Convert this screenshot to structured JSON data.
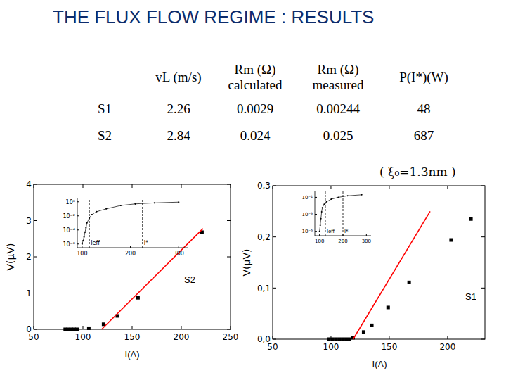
{
  "title": "THE FLUX FLOW REGIME : RESULTS",
  "table": {
    "header": [
      "vL (m/s)",
      "Rm (Ω) calculated",
      "Rm (Ω) measured",
      "P(I*)(W)"
    ],
    "rows": [
      [
        "S1",
        2.26,
        0.0029,
        0.00244,
        48
      ],
      [
        "S2",
        2.84,
        0.024,
        0.025,
        687
      ]
    ]
  },
  "note": "( ξ₀=1.3nm )",
  "chart_data": [
    {
      "type": "scatter",
      "x_label": "I(A)",
      "y_label": "V(μV)",
      "xlim": [
        50,
        250
      ],
      "ylim": [
        0,
        4
      ],
      "xticks": [
        50,
        100,
        150,
        200,
        250
      ],
      "yticks": [
        0,
        1,
        2,
        3,
        4
      ],
      "series": [
        {
          "type": "scatter",
          "marker": "square",
          "color": "#000000",
          "x": [
            82,
            85,
            88,
            91,
            94,
            106,
            121,
            135,
            156,
            221
          ],
          "values": [
            0,
            0,
            0,
            0,
            0,
            0.03,
            0.14,
            0.37,
            0.87,
            2.68
          ]
        },
        {
          "name": "S2",
          "type": "line",
          "color": "#ff0000",
          "x": [
            119,
            222
          ],
          "values": [
            0,
            2.78
          ]
        }
      ]
    },
    {
      "type": "line",
      "log": "y",
      "xlim": [
        90,
        320
      ],
      "ylim": [
        3e-07,
        3
      ],
      "xticks": [
        100,
        200,
        300
      ],
      "yticks": [
        {
          "value": 1,
          "label": "10⁰"
        },
        {
          "value": 0.01,
          "label": "10⁻²"
        },
        {
          "value": 0.0001,
          "label": "10⁻⁴"
        },
        {
          "value": 1e-06,
          "label": "10⁻⁶"
        }
      ],
      "series": [
        {
          "type": "line",
          "marker": "circle",
          "color": "#000000",
          "x": [
            100,
            102,
            104,
            106,
            108,
            110,
            115,
            120,
            130,
            150,
            180,
            210,
            250,
            300
          ],
          "values": [
            1e-06,
            3e-06,
            1e-05,
            5e-05,
            0.0002,
            0.001,
            0.005,
            0.015,
            0.04,
            0.1,
            0.3,
            0.5,
            0.7,
            0.9
          ]
        }
      ],
      "vlines": [
        {
          "x": 115,
          "label": "Ieff"
        },
        {
          "x": 225,
          "label": "I*"
        }
      ]
    },
    {
      "type": "scatter",
      "x_label": "I(A)",
      "y_label": "V(μV)",
      "xlim": [
        50,
        232
      ],
      "ylim": [
        0,
        0.3
      ],
      "xticks": [
        50,
        100,
        150,
        200
      ],
      "yticks": [
        {
          "value": 0,
          "label": "0,0"
        },
        {
          "value": 0.1,
          "label": "0,1"
        },
        {
          "value": 0.2,
          "label": "0,2"
        },
        {
          "value": 0.3,
          "label": "0,3"
        }
      ],
      "series": [
        {
          "type": "scatter",
          "marker": "square",
          "color": "#000000",
          "x": [
            98,
            101,
            104,
            107,
            110,
            113,
            116,
            119,
            128,
            135,
            149,
            167,
            203,
            220
          ],
          "values": [
            0,
            0,
            0,
            0,
            0,
            0,
            0,
            0.003,
            0.014,
            0.027,
            0.062,
            0.111,
            0.194,
            0.235
          ]
        },
        {
          "name": "S1",
          "type": "line",
          "color": "#ff0000",
          "x": [
            119,
            185
          ],
          "values": [
            0,
            0.25
          ]
        }
      ]
    },
    {
      "type": "line",
      "log": "y",
      "xlim": [
        80,
        320
      ],
      "ylim": [
        3e-06,
        0.5
      ],
      "xticks": [
        100,
        200,
        300
      ],
      "yticks": [
        {
          "value": 0.1,
          "label": "10⁻¹"
        },
        {
          "value": 0.001,
          "label": "10⁻³"
        },
        {
          "value": 1e-05,
          "label": "10⁻⁵"
        }
      ],
      "series": [
        {
          "type": "line",
          "marker": "circle",
          "color": "#000000",
          "x": [
            100,
            103,
            106,
            109,
            112,
            120,
            130,
            150,
            180,
            220,
            280
          ],
          "values": [
            1e-05,
            5e-05,
            0.0003,
            0.002,
            0.006,
            0.015,
            0.03,
            0.06,
            0.1,
            0.15,
            0.2
          ]
        }
      ],
      "vlines": [
        {
          "x": 125,
          "label": "Ieff"
        },
        {
          "x": 200,
          "label": "I*"
        }
      ]
    }
  ]
}
